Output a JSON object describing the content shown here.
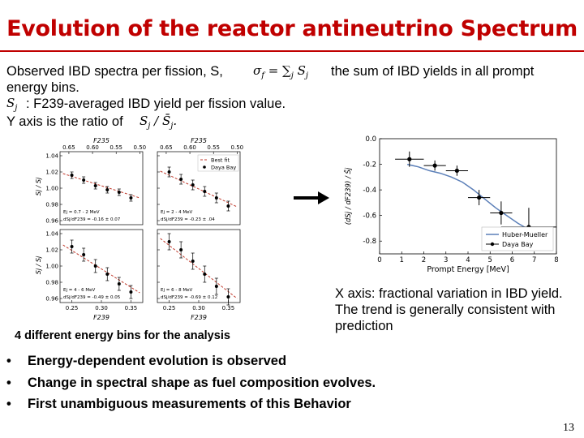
{
  "slide": {
    "title": "Evolution of the reactor antineutrino Spectrum",
    "page_number": "13",
    "intro": {
      "line1_prefix": "Observed IBD spectra per fission, S,",
      "formula_sigma": "σ",
      "formula_sigma_sub": "f",
      "formula_eq": " = ∑",
      "formula_sum_sub": "j",
      "formula_s": " S",
      "formula_s_sub": "j",
      "line1_suffix": "the sum of IBD yields in all prompt",
      "line2": "energy bins.",
      "line3_math": "S",
      "line3_math_sub": "j",
      "line3_text": ": F239-averaged IBD yield per fission value.",
      "line4_text": "Y axis is the ratio of",
      "line4_math": "S",
      "line4_math_sub": "j",
      "line4_math2": " / S̄",
      "line4_math2_sub": "j",
      "line4_end": "."
    },
    "left_figure_caption": "4 different energy bins for the analysis",
    "right_note": [
      "X axis: fractional variation in IBD yield.",
      "The trend is generally consistent with",
      "prediction"
    ],
    "bullets": [
      "Energy-dependent evolution is observed",
      "Change in spectral shape as fuel composition evolves.",
      " First unambiguous measurements of this Behavior"
    ],
    "bullet_marker": "•",
    "arrow_color": "#000000",
    "accent_color": "#c00000"
  },
  "left_panels": {
    "top_axis_label": "F235",
    "top_ticks": [
      "0.65",
      "0.60",
      "0.55",
      "0.50"
    ],
    "bottom_axis_label": "F239",
    "bottom_ticks": [
      "0.25",
      "0.30",
      "0.35"
    ],
    "y_label": "Sj / S̄j",
    "y_ticks": [
      "1.04",
      "1.02",
      "1.00",
      "0.98",
      "0.96"
    ],
    "legend": [
      "Best fit",
      "Daya Bay"
    ],
    "panels": [
      {
        "bin": "Ej = 0.7 - 2 MeV",
        "stat": "dSj/dF239 = -0.16 ± 0.07",
        "x": [
          0.25,
          0.27,
          0.29,
          0.31,
          0.33,
          0.35
        ],
        "y": [
          1.016,
          1.01,
          1.003,
          0.998,
          0.995,
          0.988
        ],
        "fit": [
          1.018,
          0.988
        ]
      },
      {
        "bin": "Ej = 2 - 4 MeV",
        "stat": "dSj/dF239 = -0.23 ± .04",
        "x": [
          0.25,
          0.27,
          0.29,
          0.31,
          0.33,
          0.35
        ],
        "y": [
          1.02,
          1.011,
          1.004,
          0.996,
          0.988,
          0.978
        ],
        "fit": [
          1.021,
          0.977
        ]
      },
      {
        "bin": "Ej = 4 - 6 MeV",
        "stat": "dSj/dF239 = -0.49 ± 0.05",
        "x": [
          0.25,
          0.27,
          0.29,
          0.31,
          0.33,
          0.35
        ],
        "y": [
          1.024,
          1.014,
          1.0,
          0.99,
          0.978,
          0.968
        ],
        "fit": [
          1.026,
          0.967
        ]
      },
      {
        "bin": "Ej = 6 - 8 MeV",
        "stat": "dSj/dF239 = -0.69 ± 0.12",
        "x": [
          0.25,
          0.27,
          0.29,
          0.31,
          0.33,
          0.35
        ],
        "y": [
          1.03,
          1.02,
          1.006,
          0.99,
          0.975,
          0.962
        ],
        "fit": [
          1.034,
          0.96
        ]
      }
    ]
  },
  "chart_data": {
    "type": "line",
    "title": "",
    "xlabel": "Prompt Energy [MeV]",
    "ylabel": "(dSj / dF239) / S̄j",
    "xlim": [
      0,
      8
    ],
    "ylim": [
      -0.9,
      0.0
    ],
    "x_ticks": [
      0,
      1,
      2,
      3,
      4,
      5,
      6,
      7,
      8
    ],
    "y_ticks": [
      0.0,
      -0.2,
      -0.4,
      -0.6,
      -0.8
    ],
    "legend_position": "bottom-right",
    "series": [
      {
        "name": "Huber-Mueller",
        "type": "line",
        "color": "#5b7fb8",
        "x": [
          1.25,
          1.75,
          2.25,
          2.75,
          3.25,
          3.75,
          4.25,
          4.75,
          5.25,
          5.75,
          6.25,
          6.75,
          7.0
        ],
        "y": [
          -0.2,
          -0.22,
          -0.25,
          -0.27,
          -0.3,
          -0.34,
          -0.4,
          -0.47,
          -0.54,
          -0.6,
          -0.66,
          -0.71,
          -0.74
        ]
      },
      {
        "name": "Daya Bay",
        "type": "points",
        "color": "#000000",
        "x": [
          1.35,
          2.5,
          3.5,
          4.5,
          5.5,
          6.75
        ],
        "y": [
          -0.16,
          -0.21,
          -0.25,
          -0.46,
          -0.58,
          -0.69
        ],
        "x_err": [
          0.65,
          0.5,
          0.5,
          0.5,
          0.5,
          1.25
        ],
        "y_err": [
          0.06,
          0.04,
          0.04,
          0.06,
          0.09,
          0.15
        ]
      }
    ]
  }
}
